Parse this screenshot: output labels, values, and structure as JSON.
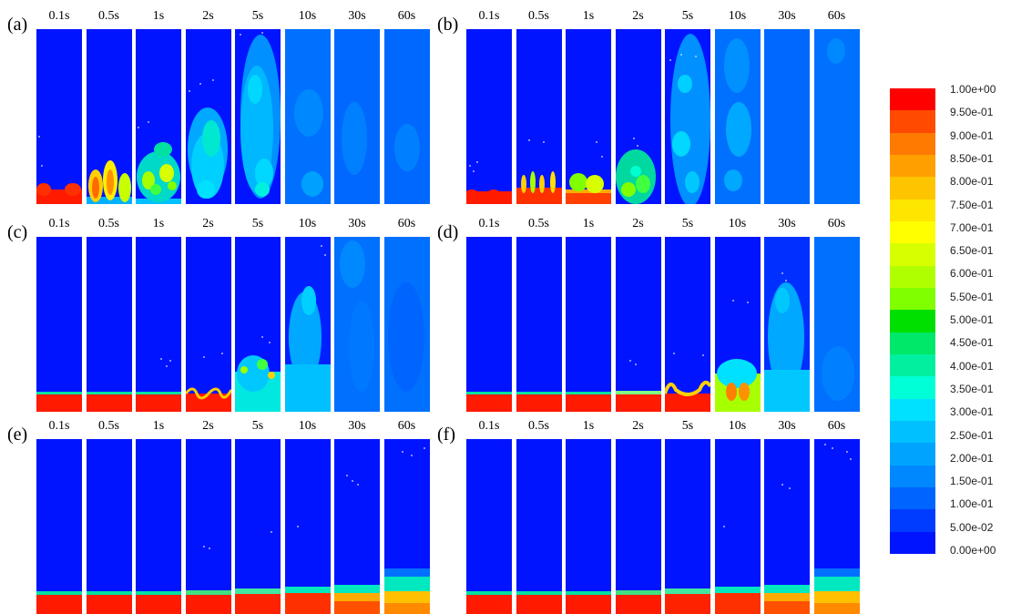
{
  "panels": [
    {
      "label": "(a)",
      "times": [
        "0.1s",
        "0.5s",
        "1s",
        "2s",
        "5s",
        "10s",
        "30s",
        "60s"
      ]
    },
    {
      "label": "(b)",
      "times": [
        "0.1s",
        "0.5s",
        "1s",
        "2s",
        "5s",
        "10s",
        "30s",
        "60s"
      ]
    },
    {
      "label": "(c)",
      "times": [
        "0.1s",
        "0.5s",
        "1s",
        "2s",
        "5s",
        "10s",
        "30s",
        "60s"
      ]
    },
    {
      "label": "(d)",
      "times": [
        "0.1s",
        "0.5s",
        "1s",
        "2s",
        "5s",
        "10s",
        "30s",
        "60s"
      ]
    },
    {
      "label": "(e)",
      "times": [
        "0.1s",
        "0.5s",
        "1s",
        "2s",
        "5s",
        "10s",
        "30s",
        "60s"
      ]
    },
    {
      "label": "(f)",
      "times": [
        "0.1s",
        "0.5s",
        "1s",
        "2s",
        "5s",
        "10s",
        "30s",
        "60s"
      ]
    }
  ],
  "colorbar": {
    "labels": [
      "1.00e+00",
      "9.50e-01",
      "9.00e-01",
      "8.50e-01",
      "8.00e-01",
      "7.50e-01",
      "7.00e-01",
      "6.50e-01",
      "6.00e-01",
      "5.50e-01",
      "5.00e-01",
      "4.50e-01",
      "4.00e-01",
      "3.50e-01",
      "3.00e-01",
      "2.50e-01",
      "2.00e-01",
      "1.50e-01",
      "1.00e-01",
      "5.00e-02",
      "0.00e+00"
    ],
    "colors": [
      "#ff0000",
      "#ff4a00",
      "#ff7a00",
      "#ffa000",
      "#ffc400",
      "#ffe600",
      "#ffff00",
      "#d8ff00",
      "#b0ff00",
      "#80ff00",
      "#00e000",
      "#00e86a",
      "#00f0a0",
      "#00ffd6",
      "#00e0ff",
      "#00c0ff",
      "#00a4ff",
      "#0088ff",
      "#0064ff",
      "#003cff",
      "#0014ff"
    ]
  }
}
